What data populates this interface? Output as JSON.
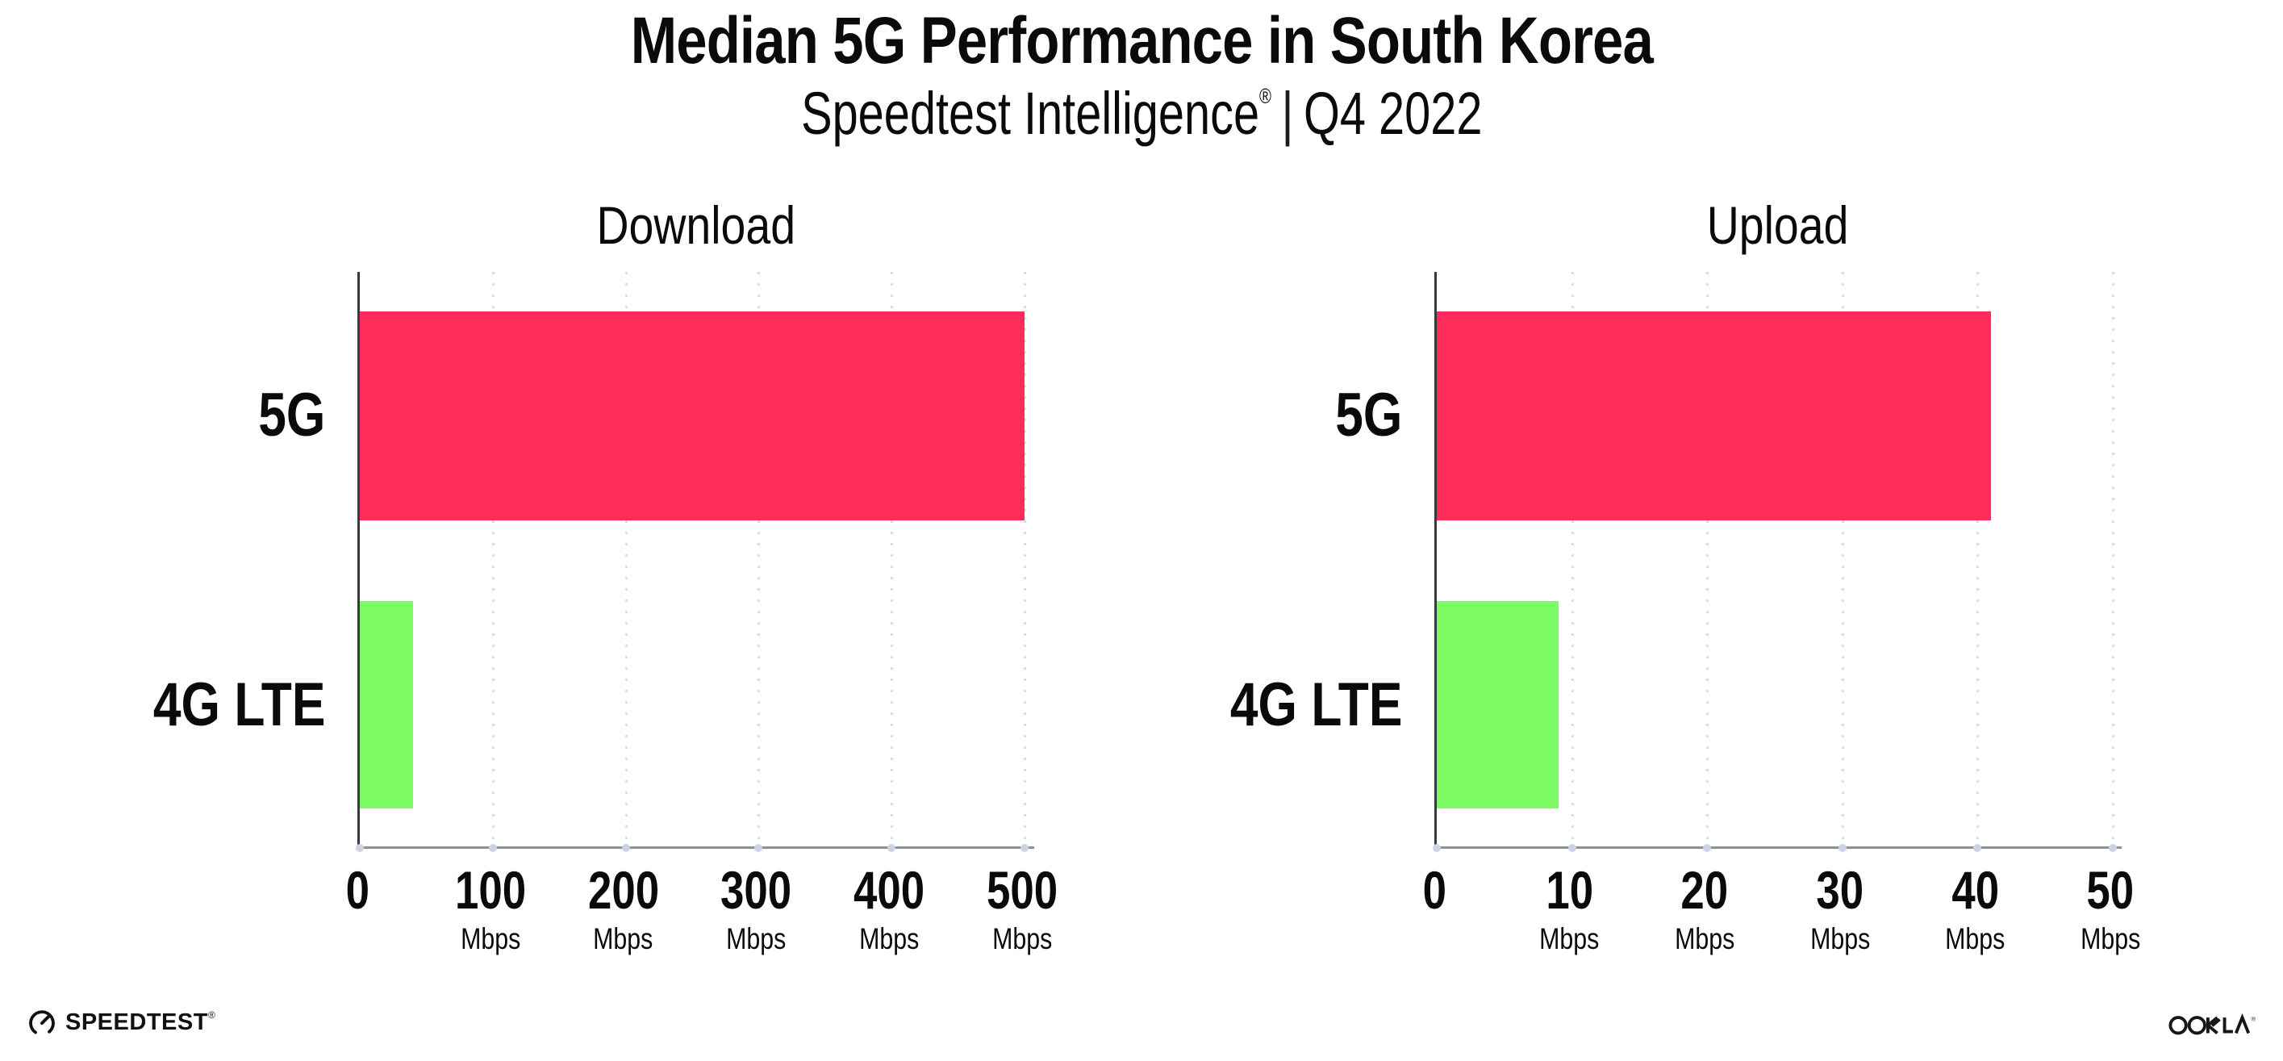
{
  "title": "Median 5G Performance in South Korea",
  "subtitle": {
    "brand": "Speedtest Intelligence",
    "registered_mark": "®",
    "separator": "|",
    "period": "Q4 2022"
  },
  "colors": {
    "bar_5g": "#ff2b5a",
    "bar_4g_lte": "#7dfb65",
    "grid_dotted": "#dadde6",
    "axis_vertical": "#3a3a3e",
    "axis_horizontal": "#8f9096",
    "text": "#0a0a0a",
    "background": "#ffffff"
  },
  "chart_data": [
    {
      "type": "bar",
      "orientation": "horizontal",
      "title": "Download",
      "categories": [
        "5G",
        "4G LTE"
      ],
      "values": [
        500,
        40
      ],
      "unit": "Mbps",
      "xlabel": "",
      "ylabel": "",
      "xlim": [
        0,
        500
      ],
      "ticks": [
        0,
        100,
        200,
        300,
        400,
        500
      ],
      "tick_unit_label": "Mbps",
      "grid": true,
      "legend": false
    },
    {
      "type": "bar",
      "orientation": "horizontal",
      "title": "Upload",
      "categories": [
        "5G",
        "4G LTE"
      ],
      "values": [
        41,
        9
      ],
      "unit": "Mbps",
      "xlabel": "",
      "ylabel": "",
      "xlim": [
        0,
        50
      ],
      "ticks": [
        0,
        10,
        20,
        30,
        40,
        50
      ],
      "tick_unit_label": "Mbps",
      "grid": true,
      "legend": false
    }
  ],
  "footer": {
    "speedtest_label": "SPEEDTEST",
    "speedtest_mark": "®",
    "ookla_label": "OOKLA",
    "ookla_mark": "®"
  }
}
